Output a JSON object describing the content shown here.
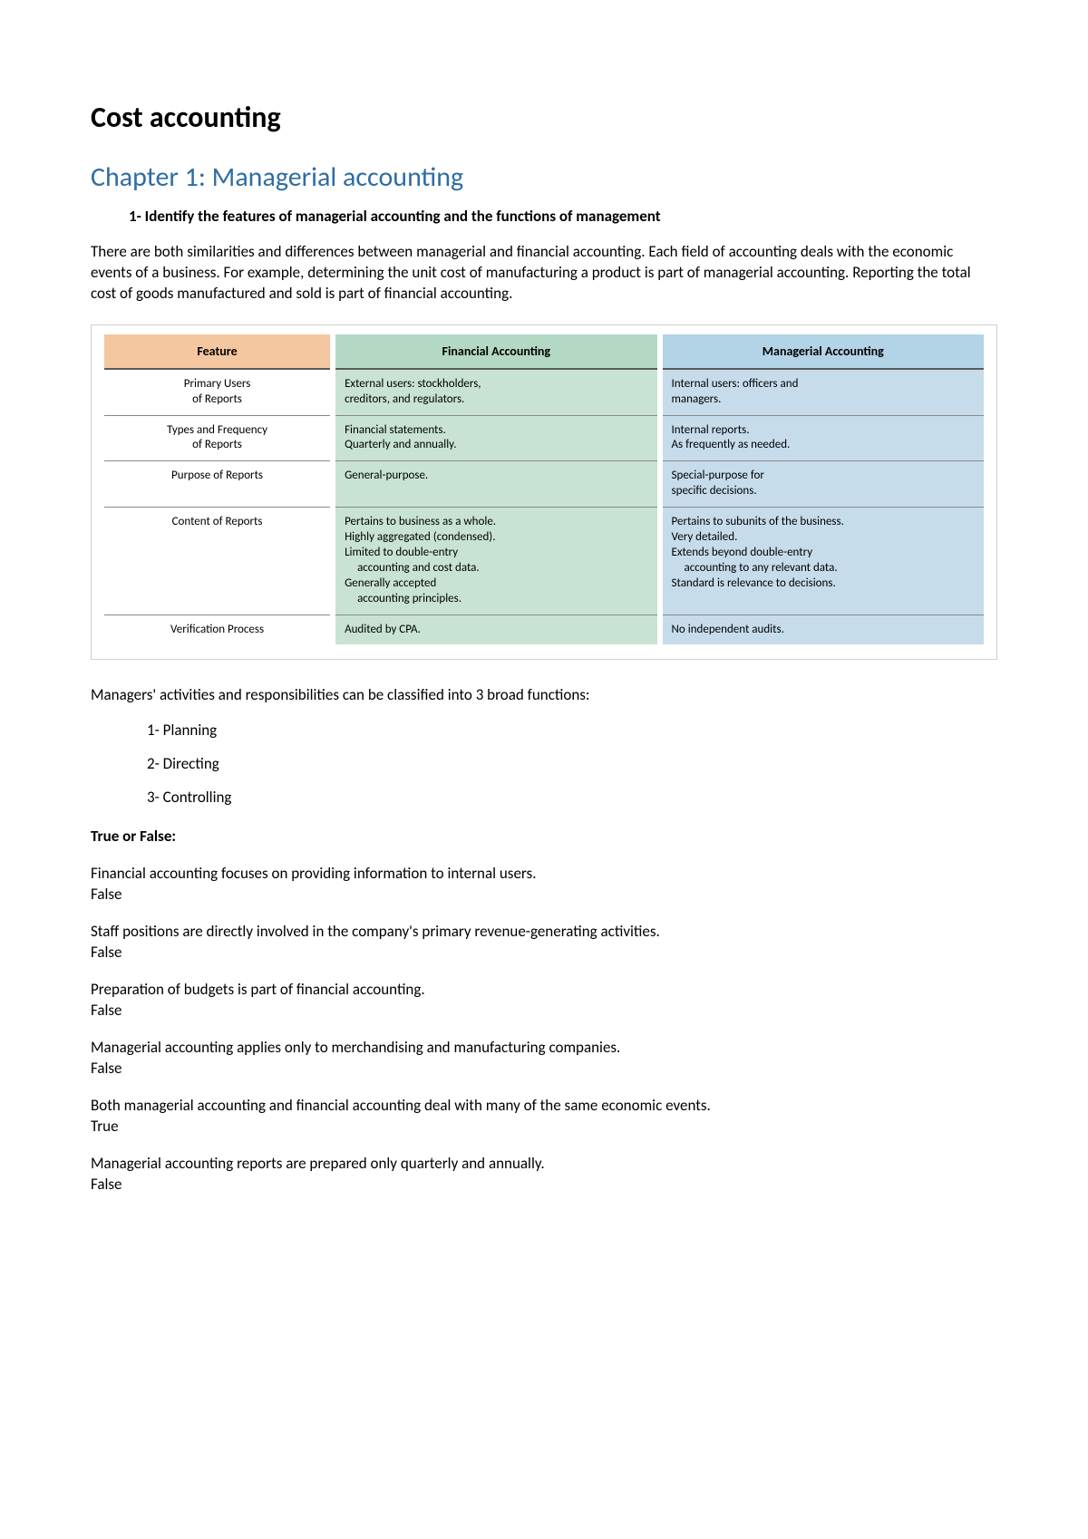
{
  "document": {
    "main_title": "Cost accounting",
    "chapter_title": "Chapter 1: Managerial accounting",
    "section_heading": "1-  Identify the features of managerial accounting and the functions of management",
    "intro_paragraph": "There are both similarities and differences between managerial and financial accounting. Each field of accounting deals with the economic events of a business. For example, determining the unit cost of manufacturing a product is part of managerial accounting. Reporting the total cost of goods manufactured and sold is part of financial accounting.",
    "functions_intro": "Managers' activities and responsibilities can be classified into 3 broad functions:",
    "functions": [
      {
        "label": "1-  Planning"
      },
      {
        "label": "2-  Directing"
      },
      {
        "label": "3-  Controlling"
      }
    ],
    "tf_heading": "True or False:",
    "tf_items": [
      {
        "q": "Financial accounting focuses on providing information to internal users.",
        "a": "False"
      },
      {
        "q": "Staff positions are directly involved in the company's primary revenue-generating activities.",
        "a": "False"
      },
      {
        "q": "Preparation of budgets is part of financial accounting.",
        "a": "False"
      },
      {
        "q": "Managerial accounting applies only to merchandising and manufacturing companies.",
        "a": "False"
      },
      {
        "q": "Both managerial accounting and financial accounting deal with many of the same economic events.",
        "a": "True"
      },
      {
        "q": "Managerial accounting reports are prepared only quarterly and annually.",
        "a": "False"
      }
    ]
  },
  "comparison_table": {
    "type": "table",
    "background_color": "#fefffe",
    "border_color": "#d0d0d0",
    "header_font_size": 14,
    "body_font_size": 13,
    "columns": [
      {
        "label": "Feature",
        "header_bg": "#f4c7a0",
        "body_bg": "#ffffff",
        "align": "center",
        "width_pct": 26
      },
      {
        "label": "Financial Accounting",
        "header_bg": "#b3d9c4",
        "body_bg": "#c8e3d4",
        "align": "left",
        "width_pct": 37
      },
      {
        "label": "Managerial Accounting",
        "header_bg": "#b3d3e6",
        "body_bg": "#c6dceb",
        "align": "left",
        "width_pct": 37
      }
    ],
    "header_border_color": "#5a5a5a",
    "row_border_color": "#888888",
    "rows": [
      {
        "feature": [
          "Primary Users",
          "of Reports"
        ],
        "financial": [
          "External users: stockholders,",
          "creditors, and regulators."
        ],
        "managerial": [
          "Internal users: officers and",
          "managers."
        ]
      },
      {
        "feature": [
          "Types and Frequency",
          "of Reports"
        ],
        "financial": [
          "Financial statements.",
          "Quarterly and annually."
        ],
        "managerial": [
          "Internal reports.",
          "As frequently as needed."
        ]
      },
      {
        "feature": [
          "Purpose of Reports"
        ],
        "financial": [
          "General-purpose."
        ],
        "managerial": [
          "Special-purpose for",
          "specific decisions."
        ]
      },
      {
        "feature": [
          "Content of Reports"
        ],
        "financial": [
          "Pertains to business as a whole.",
          "Highly aggregated (condensed).",
          "Limited to double-entry",
          "accounting and cost data.",
          "Generally accepted",
          "accounting principles."
        ],
        "financial_indent": [
          false,
          false,
          false,
          true,
          false,
          true
        ],
        "managerial": [
          "Pertains to subunits of the business.",
          "Very detailed.",
          "Extends beyond double-entry",
          "accounting to any relevant data.",
          "Standard is relevance to decisions."
        ],
        "managerial_indent": [
          false,
          false,
          false,
          true,
          false
        ]
      },
      {
        "feature": [
          "Verification Process"
        ],
        "financial": [
          "Audited by CPA."
        ],
        "managerial": [
          "No independent audits."
        ]
      }
    ]
  },
  "styles": {
    "page_bg": "#ffffff",
    "text_color": "#000000",
    "chapter_title_color": "#2e6da4",
    "main_title_fontsize": 32,
    "chapter_title_fontsize": 30,
    "body_fontsize": 17
  }
}
